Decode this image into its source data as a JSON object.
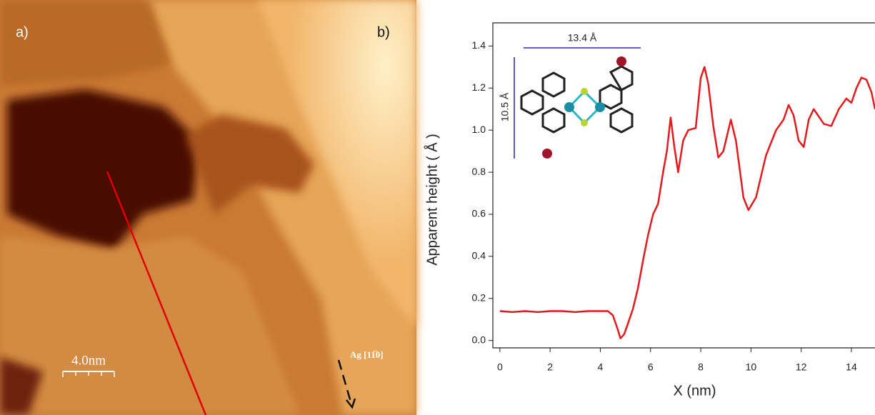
{
  "panel_a": {
    "label": "a)",
    "scale_bar": "4.0nm",
    "direction": "Ag [11̅0]"
  },
  "chart_data": {
    "type": "line",
    "panel_label": "b)",
    "x_label": "X (nm)",
    "y_label": "Apparent height ( Å )",
    "annotations": [
      "13.4 Å",
      "10.5 Å"
    ],
    "x": [
      0,
      0.5,
      1,
      1.5,
      2,
      2.5,
      3,
      3.5,
      4,
      4.3,
      4.5,
      4.7,
      4.8,
      4.95,
      5.1,
      5.3,
      5.5,
      5.7,
      5.9,
      6.1,
      6.3,
      6.5,
      6.65,
      6.8,
      6.95,
      7.1,
      7.3,
      7.5,
      7.8,
      8.0,
      8.15,
      8.3,
      8.5,
      8.7,
      8.9,
      9.2,
      9.4,
      9.7,
      9.9,
      10.2,
      10.6,
      11.0,
      11.3,
      11.5,
      11.7,
      11.9,
      12.1,
      12.3,
      12.5,
      12.9,
      13.2,
      13.5,
      13.8,
      14.0,
      14.2,
      14.4,
      14.6,
      14.8,
      14.94
    ],
    "series": [
      {
        "color": "#e41a1c",
        "values": [
          0.14,
          0.135,
          0.14,
          0.135,
          0.14,
          0.14,
          0.135,
          0.14,
          0.14,
          0.14,
          0.12,
          0.05,
          0.01,
          0.03,
          0.08,
          0.15,
          0.25,
          0.38,
          0.5,
          0.6,
          0.65,
          0.8,
          0.9,
          1.06,
          0.92,
          0.8,
          0.95,
          1.0,
          1.01,
          1.25,
          1.3,
          1.22,
          1.02,
          0.87,
          0.9,
          1.05,
          0.95,
          0.68,
          0.62,
          0.68,
          0.88,
          1.0,
          1.05,
          1.12,
          1.07,
          0.95,
          0.92,
          1.05,
          1.1,
          1.03,
          1.02,
          1.1,
          1.15,
          1.13,
          1.2,
          1.25,
          1.24,
          1.18,
          1.1
        ]
      }
    ],
    "xlim": [
      -0.28,
      14.94
    ],
    "ylim": [
      -0.035,
      1.51
    ],
    "xticks": [
      0,
      2,
      4,
      6,
      8,
      10,
      12,
      14
    ],
    "yticks": [
      {
        "value": 0,
        "label": "0.0"
      },
      0.2,
      0.4,
      0.6,
      0.8,
      {
        "value": 1,
        "label": "1.0"
      },
      1.2,
      1.4
    ]
  }
}
